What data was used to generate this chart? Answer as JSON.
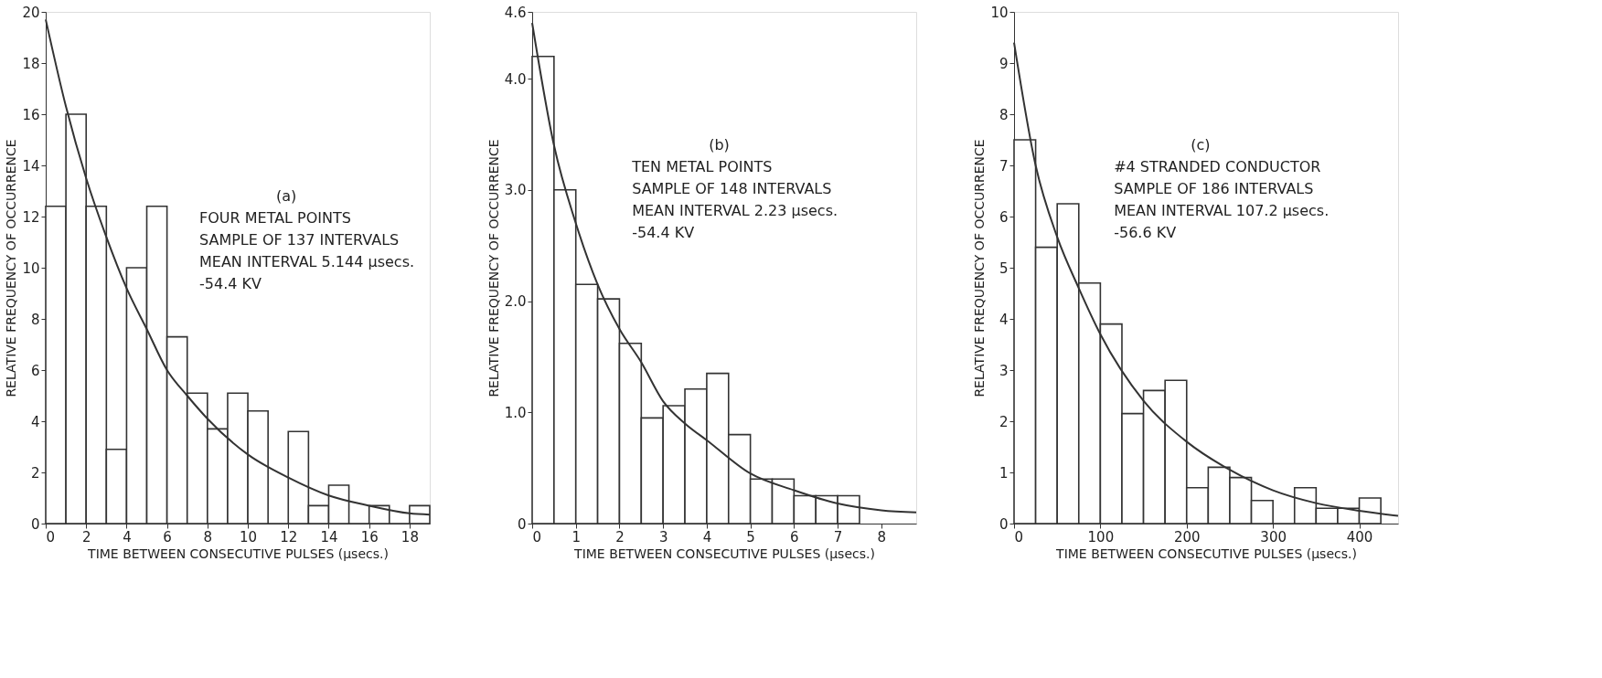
{
  "chart_data": [
    {
      "type": "histogram",
      "color": "#333333",
      "xlabel": "TIME BETWEEN CONSECUTIVE PULSES (μsecs.)",
      "ylabel": "RELATIVE FREQUENCY OF OCCURRENCE",
      "bins": [
        0,
        1,
        2,
        3,
        4,
        5,
        6,
        7,
        8,
        9,
        10,
        11,
        12,
        13,
        14,
        15,
        16,
        17,
        18,
        19
      ],
      "values": [
        12.4,
        16.0,
        12.4,
        2.9,
        10.0,
        12.4,
        7.3,
        5.1,
        3.7,
        5.1,
        4.4,
        0,
        3.6,
        0.7,
        1.5,
        0,
        0.7,
        0,
        0.7
      ],
      "series": [
        {
          "type": "line",
          "color": "#333333",
          "x": [
            0,
            1,
            2,
            3,
            4,
            5,
            6,
            7,
            8,
            10,
            12,
            14,
            16,
            18,
            19
          ],
          "values": [
            19.7,
            16.3,
            13.5,
            11.2,
            9.2,
            7.6,
            6.0,
            5.0,
            4.1,
            2.7,
            1.8,
            1.1,
            0.7,
            0.4,
            0.35
          ]
        }
      ],
      "xlim": [
        0,
        19
      ],
      "xticks": [
        0,
        2,
        4,
        6,
        8,
        10,
        12,
        14,
        16,
        18
      ],
      "ylim": [
        0,
        20
      ],
      "yticks": [
        0,
        2,
        4,
        6,
        8,
        10,
        12,
        14,
        16,
        18,
        20
      ],
      "grid": false,
      "annotations": [
        "(a)",
        "FOUR METAL POINTS",
        "SAMPLE OF 137 INTERVALS",
        "MEAN INTERVAL 5.144 μsecs.",
        "-54.4 KV"
      ]
    },
    {
      "type": "histogram",
      "color": "#333333",
      "xlabel": "TIME BETWEEN CONSECUTIVE PULSES (μsecs.)",
      "ylabel": "RELATIVE FREQUENCY OF OCCURRENCE",
      "bins": [
        0,
        0.5,
        1,
        1.5,
        2,
        2.5,
        3,
        3.5,
        4,
        4.5,
        5,
        5.5,
        6,
        6.5,
        7,
        7.5
      ],
      "values": [
        4.2,
        3.0,
        2.15,
        2.02,
        1.62,
        0.95,
        1.06,
        1.21,
        1.35,
        0.8,
        0.4,
        0.4,
        0.25,
        0.25,
        0.25
      ],
      "series": [
        {
          "type": "line",
          "color": "#333333",
          "x": [
            0,
            0.5,
            1,
            1.5,
            2,
            2.5,
            3,
            3.5,
            4,
            5,
            6,
            7,
            8,
            8.8
          ],
          "values": [
            4.5,
            3.4,
            2.7,
            2.15,
            1.75,
            1.45,
            1.1,
            0.9,
            0.75,
            0.45,
            0.3,
            0.18,
            0.12,
            0.1
          ]
        }
      ],
      "xlim": [
        0,
        8.8
      ],
      "xticks": [
        0,
        1,
        2,
        3,
        4,
        5,
        6,
        7,
        8
      ],
      "ylim": [
        0,
        4.6
      ],
      "yticks": [
        0,
        {
          "value": 1,
          "label": "1.0"
        },
        {
          "value": 2,
          "label": "2.0"
        },
        {
          "value": 3,
          "label": "3.0"
        },
        {
          "value": 4,
          "label": "4.0"
        },
        4.6
      ],
      "grid": false,
      "annotations": [
        "(b)",
        "TEN METAL POINTS",
        "SAMPLE OF 148 INTERVALS",
        "MEAN INTERVAL 2.23 μsecs.",
        "-54.4 KV"
      ]
    },
    {
      "type": "histogram",
      "color": "#333333",
      "xlabel": "TIME BETWEEN CONSECUTIVE PULSES (μsecs.)",
      "ylabel": "RELATIVE FREQUENCY OF OCCURRENCE",
      "bins": [
        0,
        25,
        50,
        75,
        100,
        125,
        150,
        175,
        200,
        225,
        250,
        275,
        300,
        325,
        350,
        375,
        400,
        425
      ],
      "values": [
        7.5,
        5.4,
        6.25,
        4.7,
        3.9,
        2.15,
        2.6,
        2.8,
        0.7,
        1.1,
        0.9,
        0.45,
        0,
        0.7,
        0.3,
        0.3,
        0.5
      ],
      "series": [
        {
          "type": "line",
          "color": "#333333",
          "x": [
            0,
            25,
            50,
            75,
            100,
            150,
            200,
            250,
            300,
            350,
            400,
            445
          ],
          "values": [
            9.4,
            7.0,
            5.6,
            4.6,
            3.7,
            2.4,
            1.6,
            1.05,
            0.65,
            0.4,
            0.25,
            0.15
          ]
        }
      ],
      "xlim": [
        0,
        445
      ],
      "xticks": [
        0,
        100,
        200,
        300,
        400
      ],
      "ylim": [
        0,
        10
      ],
      "yticks": [
        0,
        1,
        2,
        3,
        4,
        5,
        6,
        7,
        8,
        9,
        10
      ],
      "grid": false,
      "annotations": [
        "(c)",
        "#4 STRANDED CONDUCTOR",
        "SAMPLE OF 186 INTERVALS",
        "MEAN INTERVAL 107.2 μsecs.",
        "-56.6 KV"
      ]
    }
  ]
}
